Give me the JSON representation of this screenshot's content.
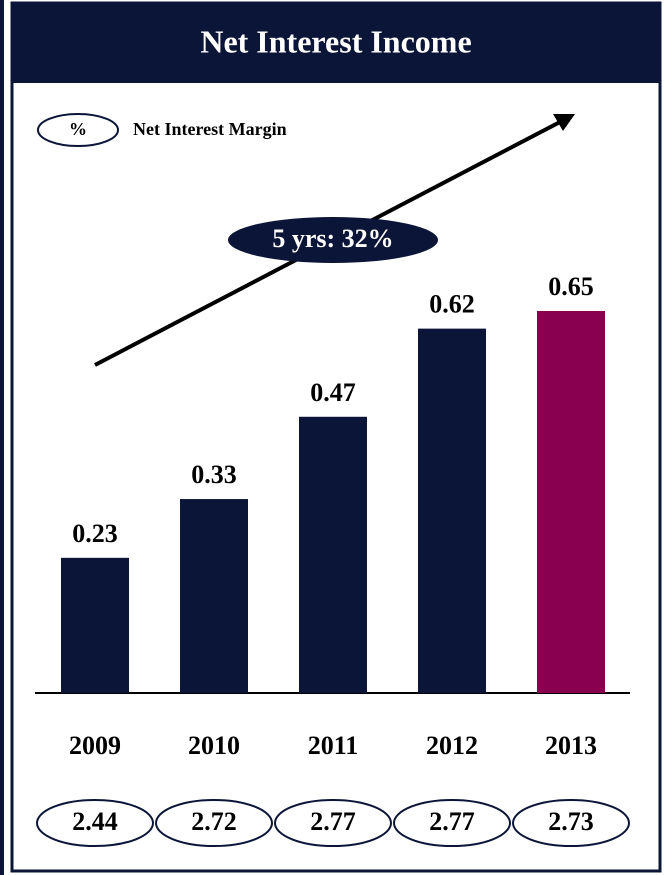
{
  "chart_data": {
    "type": "bar",
    "title": "Net Interest Income",
    "categories": [
      "2009",
      "2010",
      "2011",
      "2012",
      "2013"
    ],
    "values": [
      0.23,
      0.33,
      0.47,
      0.62,
      0.65
    ],
    "colors": [
      "#0b1538",
      "#0b1538",
      "#0b1538",
      "#0b1538",
      "#8a0050"
    ],
    "annotation": "5 yrs: 32%",
    "net_interest_margin": {
      "symbol": "%",
      "label": "Net Interest Margin",
      "values": [
        2.44,
        2.72,
        2.77,
        2.77,
        2.73
      ]
    }
  }
}
